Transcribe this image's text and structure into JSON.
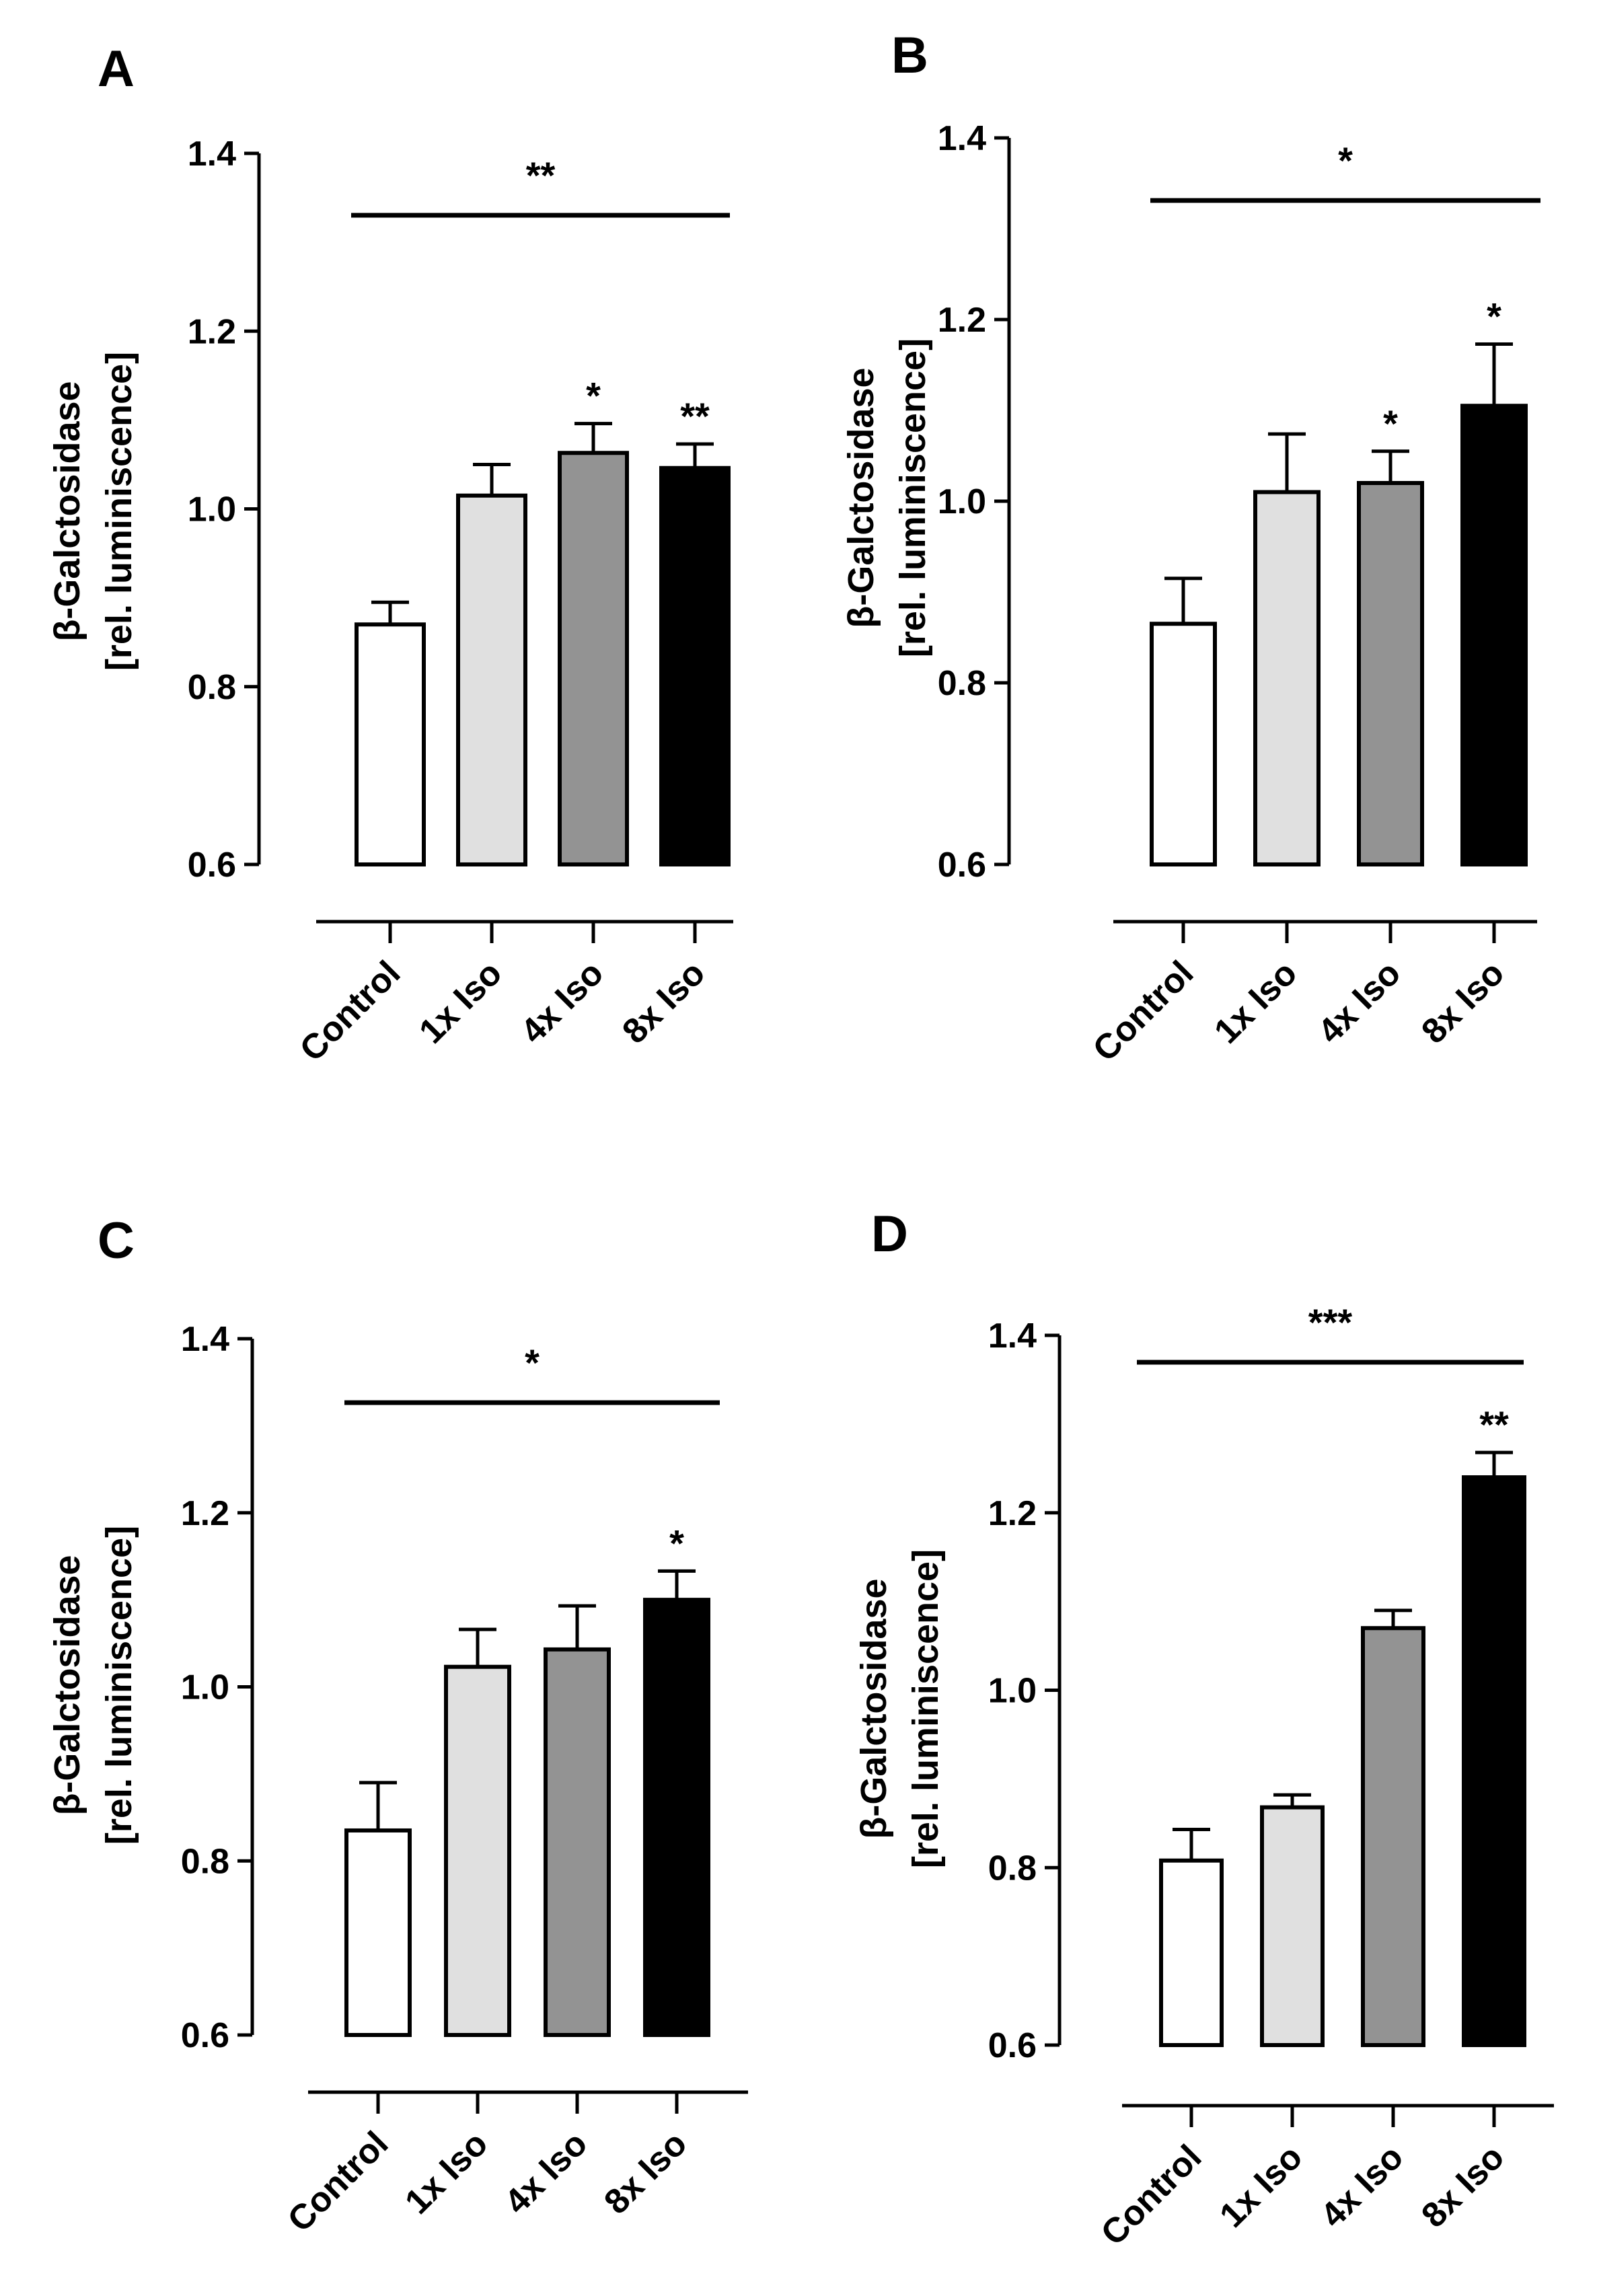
{
  "chart_data": [
    {
      "type": "bar",
      "panel": "A",
      "ylabel_line1": "β-Galctosidase",
      "ylabel_line2": "[rel. luminiscence]",
      "ylim": [
        0.6,
        1.4
      ],
      "yticks": [
        "0.6",
        "0.8",
        "1.0",
        "1.2",
        "1.4"
      ],
      "categories": [
        "Control",
        "1x Iso",
        "4x Iso",
        "8x Iso"
      ],
      "values": [
        0.87,
        1.015,
        1.063,
        1.046
      ],
      "errors": [
        0.025,
        0.035,
        0.033,
        0.027
      ],
      "bar_colors": [
        "#ffffff",
        "#e0e0e0",
        "#939393",
        "#000000"
      ],
      "bar_significance": [
        "",
        "",
        "*",
        "**"
      ],
      "overall_significance": "**"
    },
    {
      "type": "bar",
      "panel": "B",
      "ylabel_line1": "β-Galctosidase",
      "ylabel_line2": "[rel. luminiscence]",
      "ylim": [
        0.6,
        1.4
      ],
      "yticks": [
        "0.6",
        "0.8",
        "1.0",
        "1.2",
        "1.4"
      ],
      "categories": [
        "Control",
        "1x Iso",
        "4x Iso",
        "8x Iso"
      ],
      "values": [
        0.865,
        1.01,
        1.02,
        1.105
      ],
      "errors": [
        0.05,
        0.064,
        0.035,
        0.068
      ],
      "bar_colors": [
        "#ffffff",
        "#e0e0e0",
        "#939393",
        "#000000"
      ],
      "bar_significance": [
        "",
        "",
        "*",
        "*"
      ],
      "overall_significance": "*"
    },
    {
      "type": "bar",
      "panel": "C",
      "ylabel_line1": "β-Galctosidase",
      "ylabel_line2": "[rel. luminiscence]",
      "ylim": [
        0.6,
        1.4
      ],
      "yticks": [
        "0.6",
        "0.8",
        "1.0",
        "1.2",
        "1.4"
      ],
      "categories": [
        "Control",
        "1x Iso",
        "4x Iso",
        "8x Iso"
      ],
      "values": [
        0.835,
        1.023,
        1.043,
        1.1
      ],
      "errors": [
        0.055,
        0.043,
        0.05,
        0.033
      ],
      "bar_colors": [
        "#ffffff",
        "#e0e0e0",
        "#939393",
        "#000000"
      ],
      "bar_significance": [
        "",
        "",
        "",
        "*"
      ],
      "overall_significance": "*"
    },
    {
      "type": "bar",
      "panel": "D",
      "ylabel_line1": "β-Galctosidase",
      "ylabel_line2": "[rel. luminiscence]",
      "ylim": [
        0.6,
        1.4
      ],
      "yticks": [
        "0.6",
        "0.8",
        "1.0",
        "1.2",
        "1.4"
      ],
      "categories": [
        "Control",
        "1x Iso",
        "4x Iso",
        "8x Iso"
      ],
      "values": [
        0.808,
        0.868,
        1.07,
        1.24
      ],
      "errors": [
        0.035,
        0.014,
        0.02,
        0.028
      ],
      "bar_colors": [
        "#ffffff",
        "#e0e0e0",
        "#939393",
        "#000000"
      ],
      "bar_significance": [
        "",
        "",
        "",
        "**"
      ],
      "overall_significance": "***"
    }
  ]
}
